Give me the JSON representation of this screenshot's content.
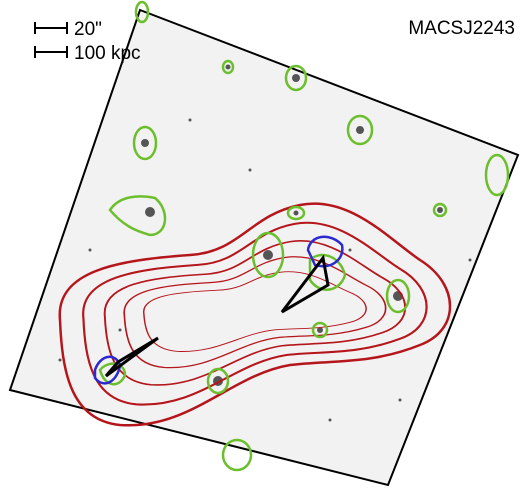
{
  "scale_bar": {
    "angular": "20\"",
    "physical": "100 kpc"
  },
  "title": "MACSJ2243"
}
